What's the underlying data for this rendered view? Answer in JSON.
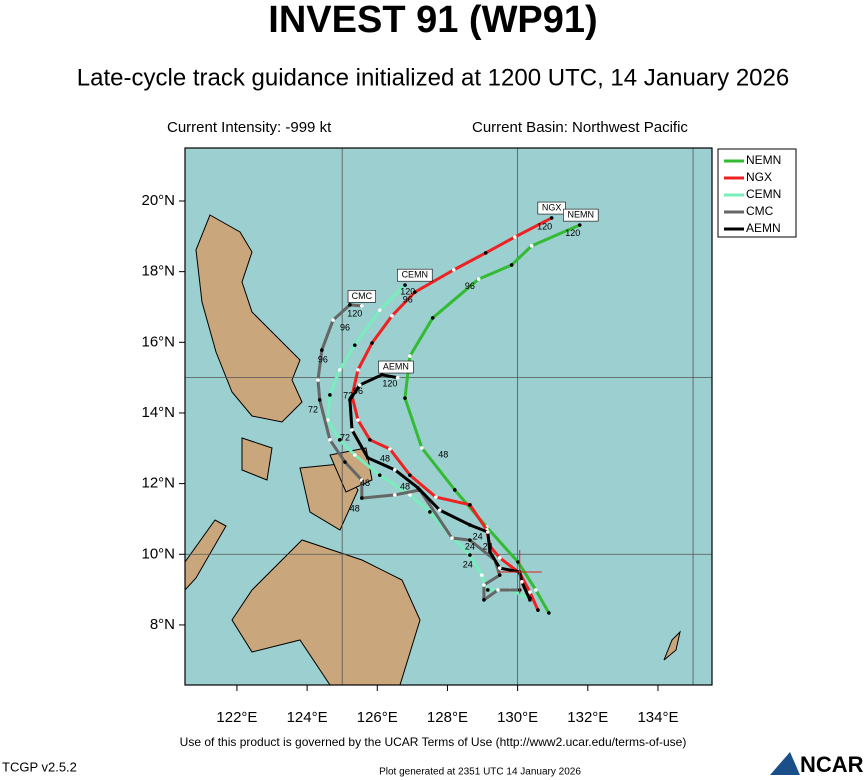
{
  "chart_data": {
    "type": "track",
    "title": "INVEST 91 (WP91)",
    "subtitle": "Late-cycle track guidance initialized at 1200 UTC, 14 January 2026",
    "intensity": "Current Intensity: -999 kt",
    "basin": "Current Basin: Northwest Pacific",
    "xlim": [
      120.52,
      135.54
    ],
    "ylim": [
      6.3,
      21.5
    ],
    "xticks": [
      {
        "value": 122,
        "label": "122°E"
      },
      {
        "value": 124,
        "label": "124°E"
      },
      {
        "value": 126,
        "label": "126°E"
      },
      {
        "value": 128,
        "label": "128°E"
      },
      {
        "value": 130,
        "label": "130°E"
      },
      {
        "value": 132,
        "label": "132°E"
      },
      {
        "value": 134,
        "label": "134°E"
      }
    ],
    "yticks": [
      {
        "value": 8,
        "label": "8°N"
      },
      {
        "value": 10,
        "label": "10°N"
      },
      {
        "value": 12,
        "label": "12°N"
      },
      {
        "value": 14,
        "label": "14°N"
      },
      {
        "value": 16,
        "label": "16°N"
      },
      {
        "value": 18,
        "label": "18°N"
      },
      {
        "value": 20,
        "label": "20°N"
      }
    ],
    "xgrid": [
      125,
      130,
      135
    ],
    "ygrid": [
      10,
      15
    ],
    "current_position": [
      130.06,
      9.5
    ],
    "series": [
      {
        "name": "NEMN",
        "color": "#33bb33",
        "x": [
          130.89,
          130.52,
          130.01,
          129.12,
          128.21,
          127.27,
          126.79,
          126.93,
          127.58,
          128.89,
          129.83,
          130.4,
          131.77
        ],
        "y": [
          8.34,
          8.99,
          9.78,
          10.77,
          11.82,
          13.01,
          14.42,
          15.61,
          16.69,
          17.79,
          18.19,
          18.73,
          19.32
        ]
      },
      {
        "name": "NGX",
        "color": "#ee2222",
        "x": [
          130.58,
          130.35,
          130.06,
          129.49,
          129.21,
          129.12,
          128.64,
          127.67,
          126.93,
          126.36,
          125.79,
          125.45,
          125.28,
          125.45,
          125.85,
          126.42,
          127.07,
          128.18,
          129.09,
          129.92,
          130.97
        ],
        "y": [
          8.42,
          8.93,
          9.47,
          9.9,
          10.23,
          10.69,
          11.4,
          11.62,
          12.24,
          12.98,
          13.24,
          13.8,
          14.48,
          15.22,
          15.98,
          16.75,
          17.42,
          18.05,
          18.53,
          18.98,
          19.52
        ]
      },
      {
        "name": "CEMN",
        "color": "#77eebb",
        "x": [
          130.35,
          129.78,
          129.15,
          128.98,
          128.64,
          128.07,
          127.5,
          126.93,
          126.07,
          125.36,
          124.93,
          124.59,
          124.65,
          124.93,
          125.36,
          126.07,
          126.79
        ],
        "y": [
          8.76,
          8.99,
          8.99,
          9.41,
          9.98,
          10.55,
          11.2,
          11.68,
          12.24,
          12.81,
          13.24,
          13.8,
          14.51,
          15.22,
          15.92,
          16.91,
          17.62
        ]
      },
      {
        "name": "CMC",
        "color": "#666666",
        "x": [
          130.06,
          129.44,
          129.04,
          129.04,
          129.49,
          129.35,
          128.64,
          128.13,
          127.21,
          126.5,
          125.56,
          125.56,
          125.08,
          124.65,
          124.36,
          124.31,
          124.42,
          124.74,
          125.22,
          125.56
        ],
        "y": [
          8.99,
          8.99,
          8.71,
          9.13,
          9.41,
          9.84,
          10.4,
          10.46,
          11.82,
          11.68,
          11.59,
          12.1,
          12.61,
          13.24,
          14.37,
          14.93,
          15.78,
          16.63,
          17.06,
          17.03
        ]
      },
      {
        "name": "AEMN",
        "color": "#000000",
        "x": [
          130.35,
          130.12,
          130.06,
          129.49,
          129.21,
          129.15,
          128.64,
          127.78,
          127.16,
          126.5,
          125.73,
          125.28,
          125.22,
          125.5,
          126.13,
          126.58
        ],
        "y": [
          8.71,
          9.22,
          9.5,
          9.61,
          10.07,
          10.63,
          10.83,
          11.25,
          11.88,
          12.39,
          12.73,
          13.52,
          14.37,
          14.79,
          15.08,
          15.0
        ]
      }
    ],
    "annotations": [
      {
        "text": "NGX",
        "x": 130.97,
        "y": 19.8,
        "boxed": true
      },
      {
        "text": "NEMN",
        "x": 131.8,
        "y": 19.6,
        "boxed": true
      },
      {
        "text": "120",
        "x": 130.77,
        "y": 19.26
      },
      {
        "text": "120",
        "x": 131.57,
        "y": 19.07
      },
      {
        "text": "96",
        "x": 128.64,
        "y": 17.57
      },
      {
        "text": "CEMN",
        "x": 127.07,
        "y": 17.9,
        "boxed": true
      },
      {
        "text": "120",
        "x": 126.87,
        "y": 17.42
      },
      {
        "text": "96",
        "x": 126.87,
        "y": 17.2
      },
      {
        "text": "CMC",
        "x": 125.56,
        "y": 17.3,
        "boxed": true
      },
      {
        "text": "120",
        "x": 125.36,
        "y": 16.8
      },
      {
        "text": "96",
        "x": 125.08,
        "y": 16.4
      },
      {
        "text": "96",
        "x": 124.45,
        "y": 15.5
      },
      {
        "text": "AEMN",
        "x": 126.53,
        "y": 15.3,
        "boxed": true
      },
      {
        "text": "120",
        "x": 126.36,
        "y": 14.82
      },
      {
        "text": "96",
        "x": 125.45,
        "y": 14.6
      },
      {
        "text": "72",
        "x": 125.17,
        "y": 14.48
      },
      {
        "text": "72",
        "x": 124.17,
        "y": 14.08
      },
      {
        "text": "72",
        "x": 125.08,
        "y": 13.29
      },
      {
        "text": "48",
        "x": 126.22,
        "y": 12.7
      },
      {
        "text": "48",
        "x": 127.88,
        "y": 12.81
      },
      {
        "text": "48",
        "x": 125.65,
        "y": 12.0
      },
      {
        "text": "48",
        "x": 126.79,
        "y": 11.9
      },
      {
        "text": "48",
        "x": 125.36,
        "y": 11.28
      },
      {
        "text": "24",
        "x": 128.86,
        "y": 10.49
      },
      {
        "text": "24",
        "x": 128.64,
        "y": 10.2
      },
      {
        "text": "24",
        "x": 129.15,
        "y": 10.2
      },
      {
        "text": "24",
        "x": 128.58,
        "y": 9.7
      }
    ]
  },
  "footer": {
    "terms": "Use of this product is governed by the UCAR Terms of Use (http://www2.ucar.edu/terms-of-use)",
    "version": "TCGP v2.5.2",
    "generated": "Plot generated at 2351 UTC   14 January 2026",
    "logo": "NCAR"
  }
}
